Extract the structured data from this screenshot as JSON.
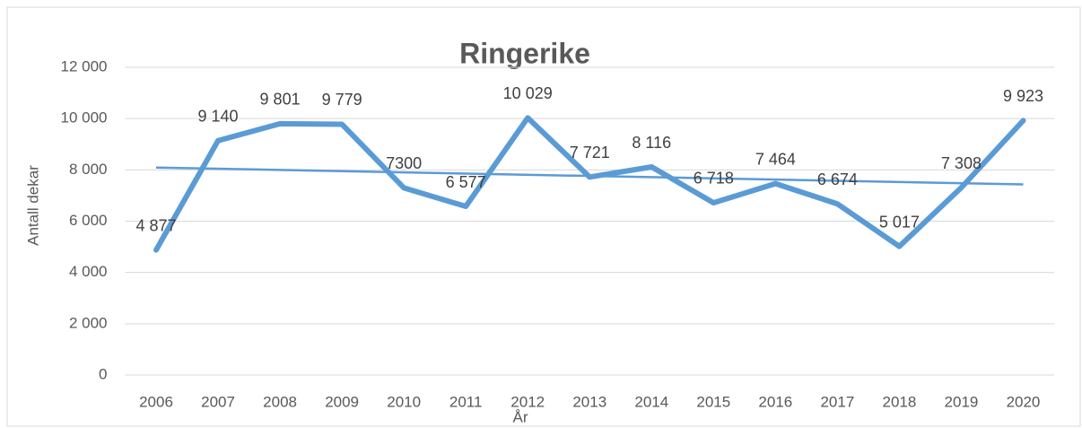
{
  "chart_data": {
    "type": "line",
    "title": "Ringerike",
    "x_label": "År",
    "y_label": "Antall dekar",
    "categories": [
      "2006",
      "2007",
      "2008",
      "2009",
      "2010",
      "2011",
      "2012",
      "2013",
      "2014",
      "2015",
      "2016",
      "2017",
      "2018",
      "2019",
      "2020"
    ],
    "series": [
      {
        "color": "#5b9bd5",
        "values": [
          4877,
          9140,
          9801,
          9779,
          7300,
          6577,
          10029,
          7721,
          8116,
          6718,
          7464,
          6674,
          5017,
          7308,
          9923
        ],
        "value_labels": [
          "4 877",
          "9 140",
          "9 801",
          "9 779",
          "7300",
          "6 577",
          "10 029",
          "7 721",
          "8 116",
          "6 718",
          "7 464",
          "6 674",
          "5 017",
          "7 308",
          "9 923"
        ]
      }
    ],
    "trendline": true,
    "ylim": [
      0,
      12000
    ],
    "yticks": [
      0,
      {
        "value": 2000,
        "label": "2 000"
      },
      {
        "value": 4000,
        "label": "4 000"
      },
      {
        "value": 6000,
        "label": "6 000"
      },
      {
        "value": 8000,
        "label": "8 000"
      },
      {
        "value": 10000,
        "label": "10 000"
      },
      {
        "value": 12000,
        "label": "12 000"
      }
    ],
    "grid": true
  }
}
